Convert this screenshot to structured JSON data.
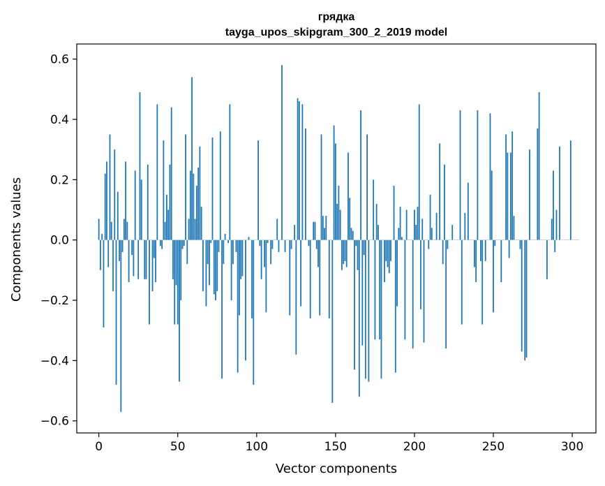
{
  "chart_data": {
    "type": "bar",
    "title": "грядка",
    "subtitle": "tayga_upos_skipgram_300_2_2019 model",
    "xlabel": "Vector components",
    "ylabel": "Components values",
    "xlim": [
      -14,
      315
    ],
    "ylim": [
      -0.64,
      0.65
    ],
    "xticks": [
      0,
      50,
      100,
      150,
      200,
      250,
      300
    ],
    "yticks": [
      -0.6,
      -0.4,
      -0.2,
      0.0,
      0.2,
      0.4,
      0.6
    ],
    "ytick_labels": [
      "−0.6",
      "−0.4",
      "−0.2",
      "0.0",
      "0.2",
      "0.4",
      "0.6"
    ],
    "grid": false,
    "series": [
      {
        "values": [
          0.07,
          -0.1,
          0.02,
          -0.29,
          0.22,
          0.26,
          -0.09,
          0.35,
          0.06,
          -0.17,
          0.3,
          -0.48,
          0.16,
          -0.07,
          -0.57,
          -0.04,
          0.07,
          0.26,
          0.06,
          -0.14,
          0.0,
          -0.05,
          -0.12,
          0.23,
          0.0,
          -0.13,
          0.49,
          0.2,
          0.0,
          -0.13,
          -0.13,
          0.25,
          -0.28,
          0.0,
          -0.17,
          -0.06,
          -0.14,
          0.45,
          0.0,
          -0.02,
          -0.03,
          0.33,
          0.06,
          0.15,
          0.1,
          0.25,
          0.44,
          -0.13,
          -0.28,
          -0.15,
          -0.28,
          -0.47,
          -0.2,
          -0.03,
          -0.02,
          0.35,
          -0.08,
          0.07,
          0.23,
          0.54,
          0.22,
          0.07,
          0.18,
          0.24,
          0.31,
          0.11,
          -0.17,
          0.0,
          -0.22,
          -0.08,
          -0.15,
          -0.01,
          0.34,
          -0.18,
          -0.2,
          -0.17,
          -0.04,
          0.36,
          -0.46,
          -0.08,
          0.02,
          0.0,
          -0.01,
          0.45,
          -0.2,
          -0.08,
          0.0,
          -0.04,
          -0.44,
          -0.25,
          -0.13,
          -0.12,
          0.0,
          -0.4,
          0.0,
          0.01,
          0.0,
          -0.26,
          -0.48,
          0.0,
          0.0,
          0.33,
          -0.02,
          -0.13,
          0.0,
          -0.09,
          -0.24,
          -0.01,
          0.0,
          -0.08,
          -0.03,
          0.0,
          0.0,
          0.07,
          -0.04,
          0.0,
          0.58,
          0.0,
          -0.04,
          0.0,
          0.0,
          -0.25,
          -0.03,
          0.0,
          0.05,
          -0.38,
          0.47,
          0.46,
          -0.22,
          0.45,
          0.0,
          0.37,
          0.0,
          -0.02,
          -0.26,
          0.0,
          0.06,
          0.06,
          -0.03,
          -0.09,
          -0.25,
          0.35,
          0.08,
          0.04,
          0.08,
          0.0,
          -0.26,
          0.0,
          -0.54,
          0.38,
          0.32,
          0.12,
          0.18,
          0.1,
          -0.1,
          -0.08,
          -0.07,
          -0.09,
          0.29,
          0.14,
          0.04,
          0.03,
          -0.43,
          -0.02,
          -0.1,
          -0.52,
          0.43,
          -0.35,
          -0.05,
          -0.46,
          0.35,
          -0.47,
          0.0,
          0.0,
          0.2,
          -0.33,
          0.12,
          0.05,
          -0.33,
          -0.46,
          0.0,
          -0.14,
          -0.07,
          -0.09,
          -0.11,
          -0.07,
          0.0,
          0.18,
          -0.44,
          -0.22,
          0.04,
          0.11,
          0.01,
          0.0,
          -0.33,
          0.1,
          0.0,
          0.0,
          0.0,
          -0.36,
          0.1,
          0.05,
          0.11,
          0.45,
          -0.23,
          0.07,
          -0.34,
          0.0,
          0.0,
          -0.03,
          0.15,
          0.04,
          0.0,
          0.0,
          0.09,
          0.0,
          0.32,
          0.0,
          -0.08,
          0.25,
          -0.36,
          -0.03,
          0.0,
          0.0,
          0.05,
          0.0,
          0.0,
          0.0,
          0.0,
          0.43,
          -0.28,
          0.0,
          0.09,
          0.0,
          0.19,
          0.0,
          0.0,
          0.0,
          -0.09,
          -0.14,
          0.43,
          0.0,
          -0.07,
          -0.28,
          0.0,
          -0.07,
          0.0,
          0.0,
          0.42,
          0.23,
          -0.24,
          -0.02,
          0.0,
          0.0,
          0.0,
          -0.14,
          0.0,
          0.0,
          0.35,
          0.29,
          -0.06,
          0.29,
          0.36,
          0.08,
          0.0,
          0.0,
          0.0,
          -0.03,
          -0.37,
          0.0,
          -0.4,
          -0.39,
          0.0,
          0.3,
          0.0,
          0.0,
          0.0,
          0.0,
          0.37,
          0.49,
          0.0,
          0.0,
          0.0,
          0.0,
          -0.13,
          0.0,
          0.0,
          0.07,
          0.23,
          -0.04,
          0.1,
          0.0,
          0.31,
          0.0,
          0.0,
          0.0,
          0.0,
          0.0,
          0.0,
          0.33,
          0.0,
          0.0,
          0.0,
          0.0,
          0.0
        ]
      }
    ]
  }
}
